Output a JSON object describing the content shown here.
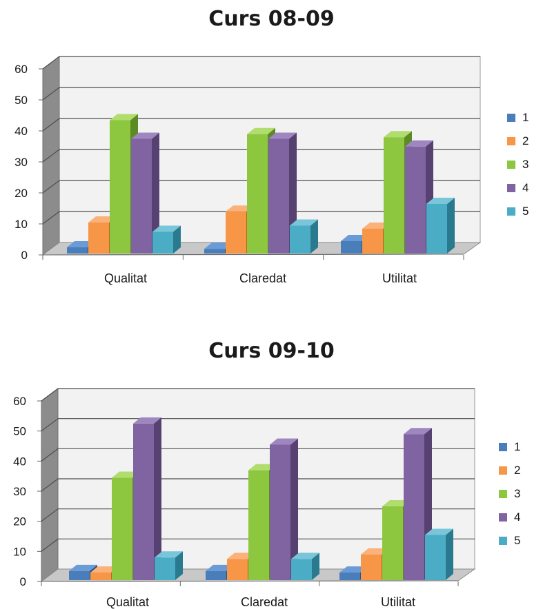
{
  "chart_data": [
    {
      "type": "bar",
      "title": "Curs 08-09",
      "categories": [
        "Qualitat",
        "Claredat",
        "Utilitat"
      ],
      "series": [
        {
          "name": "1",
          "values": [
            2,
            1.5,
            4
          ]
        },
        {
          "name": "2",
          "values": [
            10,
            13.5,
            8
          ]
        },
        {
          "name": "3",
          "values": [
            43,
            38.5,
            37.5
          ]
        },
        {
          "name": "4",
          "values": [
            37,
            37,
            34.5
          ]
        },
        {
          "name": "5",
          "values": [
            7,
            9,
            16
          ]
        }
      ],
      "ylim": [
        0,
        60
      ],
      "yticks": [
        "0",
        "10",
        "20",
        "30",
        "40",
        "50",
        "60"
      ],
      "grid": true,
      "legend": "right"
    },
    {
      "type": "bar",
      "title": "Curs 09-10",
      "categories": [
        "Qualitat",
        "Claredat",
        "Utilitat"
      ],
      "series": [
        {
          "name": "1",
          "values": [
            3,
            3,
            2.5
          ]
        },
        {
          "name": "2",
          "values": [
            2.5,
            7,
            8.5
          ]
        },
        {
          "name": "3",
          "values": [
            34,
            36.5,
            24.5
          ]
        },
        {
          "name": "4",
          "values": [
            52,
            45,
            48.5
          ]
        },
        {
          "name": "5",
          "values": [
            7.5,
            7,
            15
          ]
        }
      ],
      "ylim": [
        0,
        60
      ],
      "yticks": [
        "0",
        "10",
        "20",
        "30",
        "40",
        "50",
        "60"
      ],
      "grid": true,
      "legend": "right"
    }
  ],
  "colors": {
    "series": [
      "#4a7ebb",
      "#f79646",
      "#8dc63f",
      "#8064a2",
      "#4bacc6"
    ],
    "series_side": [
      "#2e5485",
      "#b8651c",
      "#5c8a25",
      "#564170",
      "#2a7a8f"
    ],
    "series_top": [
      "#6b9bd6",
      "#fab27a",
      "#b0dd6e",
      "#9e86c0",
      "#79c6db"
    ],
    "wall": "#f2f2f2",
    "side_wall": "#8c8c8c",
    "floor": "#c8c8c8",
    "grid": "#4d4d4d"
  }
}
